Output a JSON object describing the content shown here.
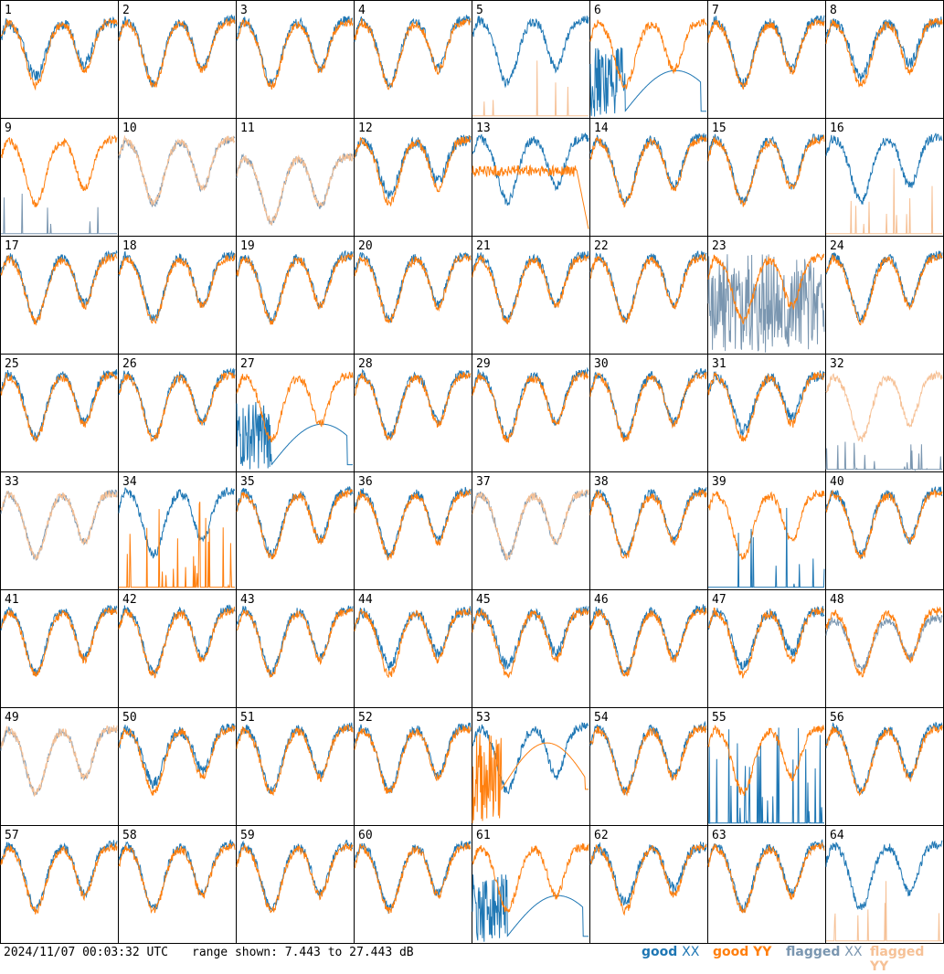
{
  "chart_data": {
    "type": "line",
    "layout": "8x8 small multiples (antenna spectra)",
    "panels": [
      1,
      2,
      3,
      4,
      5,
      6,
      7,
      8,
      9,
      10,
      11,
      12,
      13,
      14,
      15,
      16,
      17,
      18,
      19,
      20,
      21,
      22,
      23,
      24,
      25,
      26,
      27,
      28,
      29,
      30,
      31,
      32,
      33,
      34,
      35,
      36,
      37,
      38,
      39,
      40,
      41,
      42,
      43,
      44,
      45,
      46,
      47,
      48,
      49,
      50,
      51,
      52,
      53,
      54,
      55,
      56,
      57,
      58,
      59,
      60,
      61,
      62,
      63,
      64
    ],
    "y_range_db": [
      7.443,
      27.443
    ],
    "series": [
      {
        "name": "good XX",
        "color": "#1f77b4"
      },
      {
        "name": "good YY",
        "color": "#ff7f0e"
      },
      {
        "name": "flagged XX",
        "color": "#7a96b0"
      },
      {
        "name": "flagged YY",
        "color": "#f6c196"
      }
    ],
    "panel_styles": {
      "1": "offset",
      "5": "xx_spike",
      "6": "bad_xx",
      "8": "offset",
      "9": "xxflag_spike",
      "10": "flag_both",
      "11": "flag_both_low",
      "12": "offset",
      "13": "offset_drop",
      "16": "xx_spikeflag",
      "23": "flagxx_noise",
      "27": "bad_xx",
      "31": "offset",
      "32": "flag_yy_spike",
      "33": "flag_both",
      "34": "yy_spike",
      "37": "flag_both",
      "39": "yy_xxspike",
      "44": "offset",
      "45": "offset",
      "47": "offset",
      "48": "flagxx_yy",
      "49": "flag_both",
      "50": "offset",
      "53": "bad_yy",
      "55": "xx_noise",
      "61": "bad_xx",
      "62": "offset",
      "64": "xx_spikeflag"
    }
  },
  "footer": {
    "timestamp": "2024/11/07 00:03:32 UTC",
    "range": "range shown: 7.443 to 27.443 dB"
  },
  "legend": {
    "good_xx_prefix": "good ",
    "good_xx_pol": "XX",
    "good_yy": "good YY",
    "flagged_xx_prefix": "flagged ",
    "flagged_xx_pol": "XX",
    "flagged_yy": "flagged YY"
  }
}
